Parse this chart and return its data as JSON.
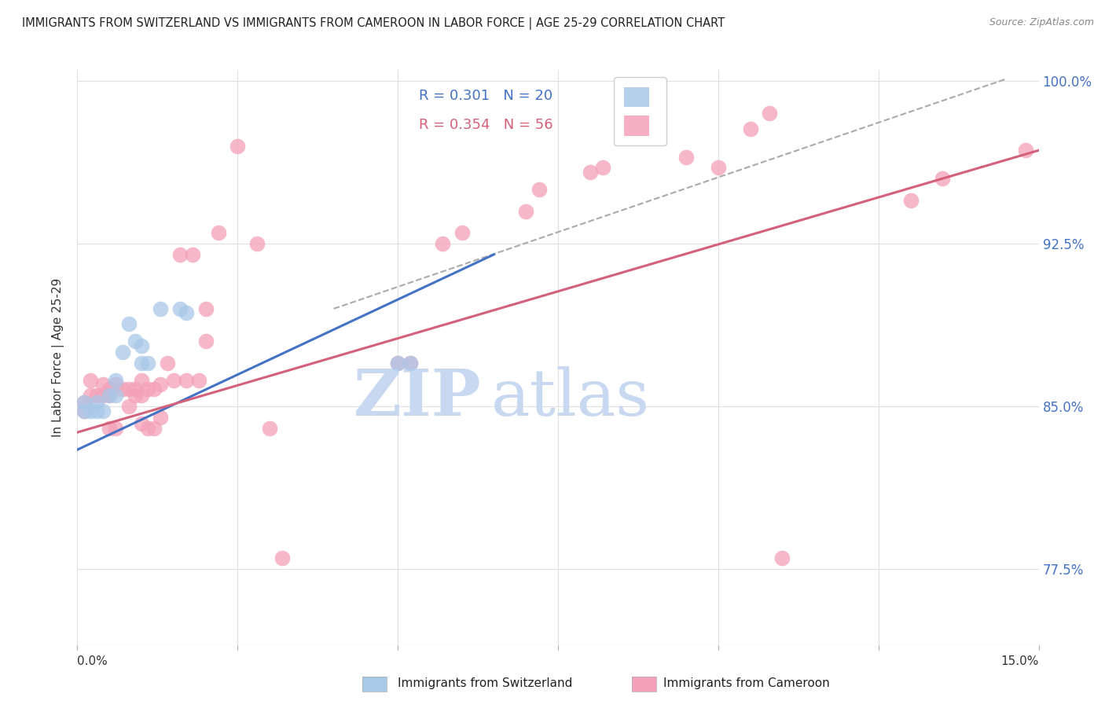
{
  "title": "IMMIGRANTS FROM SWITZERLAND VS IMMIGRANTS FROM CAMEROON IN LABOR FORCE | AGE 25-29 CORRELATION CHART",
  "source": "Source: ZipAtlas.com",
  "ylabel": "In Labor Force | Age 25-29",
  "legend_label_blue": "Immigrants from Switzerland",
  "legend_label_pink": "Immigrants from Cameroon",
  "legend_blue_R": "R = 0.301",
  "legend_blue_N": "N = 20",
  "legend_pink_R": "R = 0.354",
  "legend_pink_N": "N = 56",
  "blue_color": "#a8c8e8",
  "pink_color": "#f4a0b8",
  "blue_line_color": "#4472c4",
  "pink_line_color": "#d4607a",
  "background_color": "#ffffff",
  "grid_color": "#e0e0e0",
  "xmin": 0.0,
  "xmax": 0.15,
  "ymin": 0.74,
  "ymax": 1.005,
  "blue_scatter_x": [
    0.001,
    0.001,
    0.002,
    0.003,
    0.003,
    0.004,
    0.005,
    0.006,
    0.006,
    0.007,
    0.008,
    0.009,
    0.01,
    0.01,
    0.011,
    0.013,
    0.016,
    0.017,
    0.05,
    0.052
  ],
  "blue_scatter_y": [
    0.852,
    0.848,
    0.848,
    0.852,
    0.848,
    0.848,
    0.855,
    0.862,
    0.855,
    0.875,
    0.888,
    0.88,
    0.878,
    0.87,
    0.87,
    0.895,
    0.895,
    0.893,
    0.87,
    0.87
  ],
  "pink_scatter_x": [
    0.001,
    0.001,
    0.002,
    0.002,
    0.003,
    0.004,
    0.004,
    0.005,
    0.005,
    0.005,
    0.006,
    0.006,
    0.007,
    0.008,
    0.008,
    0.009,
    0.009,
    0.01,
    0.01,
    0.01,
    0.011,
    0.011,
    0.012,
    0.012,
    0.013,
    0.013,
    0.014,
    0.015,
    0.016,
    0.017,
    0.018,
    0.019,
    0.02,
    0.02,
    0.022,
    0.025,
    0.028,
    0.03,
    0.032,
    0.05,
    0.052,
    0.057,
    0.06,
    0.07,
    0.072,
    0.08,
    0.082,
    0.09,
    0.095,
    0.1,
    0.105,
    0.108,
    0.11,
    0.13,
    0.135,
    0.148
  ],
  "pink_scatter_y": [
    0.852,
    0.848,
    0.862,
    0.855,
    0.855,
    0.86,
    0.855,
    0.858,
    0.855,
    0.84,
    0.86,
    0.84,
    0.858,
    0.858,
    0.85,
    0.858,
    0.855,
    0.862,
    0.855,
    0.842,
    0.858,
    0.84,
    0.858,
    0.84,
    0.86,
    0.845,
    0.87,
    0.862,
    0.92,
    0.862,
    0.92,
    0.862,
    0.895,
    0.88,
    0.93,
    0.97,
    0.925,
    0.84,
    0.78,
    0.87,
    0.87,
    0.925,
    0.93,
    0.94,
    0.95,
    0.958,
    0.96,
    0.975,
    0.965,
    0.96,
    0.978,
    0.985,
    0.78,
    0.945,
    0.955,
    0.968
  ],
  "blue_line_x": [
    0.0,
    0.065
  ],
  "blue_line_y": [
    0.83,
    0.92
  ],
  "pink_line_x": [
    0.0,
    0.15
  ],
  "pink_line_y": [
    0.838,
    0.968
  ],
  "dashed_line_x": [
    0.04,
    0.145
  ],
  "dashed_line_y": [
    0.895,
    1.001
  ],
  "watermark_zip": "ZIP",
  "watermark_atlas": "atlas",
  "watermark_color": "#c8d8f0",
  "right_ytick_color": "#4472c4",
  "ytick_vals": [
    0.775,
    0.85,
    0.925,
    1.0
  ],
  "ytick_labels": [
    "77.5%",
    "85.0%",
    "92.5%",
    "100.0%"
  ],
  "xtick_vals": [
    0.0,
    0.025,
    0.05,
    0.075,
    0.1,
    0.125,
    0.15
  ]
}
